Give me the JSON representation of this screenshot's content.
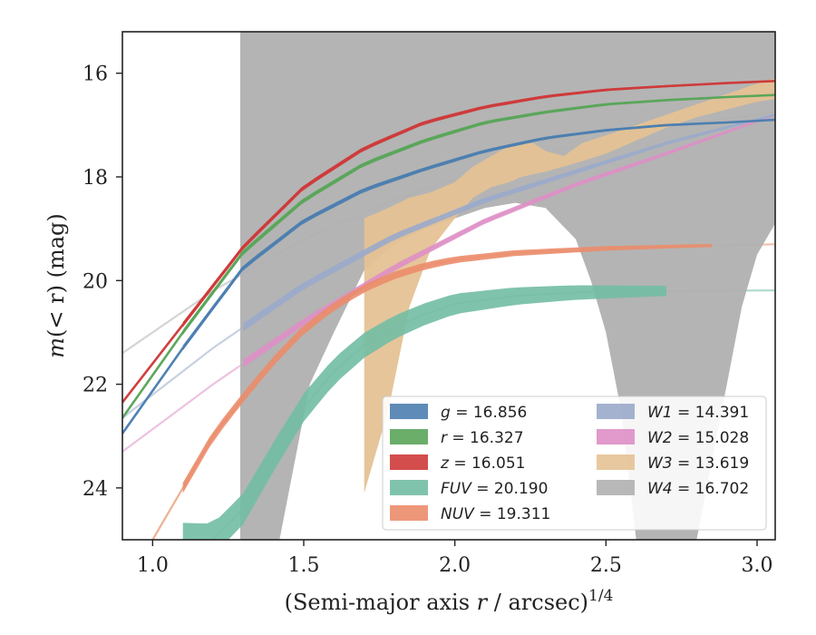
{
  "chart_data": {
    "type": "line",
    "xlabel": {
      "prefix": "(Semi-major axis ",
      "var": "r",
      "suffix": " / arcsec)",
      "exponent": "1/4"
    },
    "ylabel": {
      "var": "m",
      "inner": "(< r)",
      "unit": " (mag)"
    },
    "xlim": [
      0.9,
      3.06
    ],
    "ylim": [
      25.0,
      15.2
    ],
    "y_inverted": true,
    "x_ticks": [
      1.0,
      1.5,
      2.0,
      2.5,
      3.0
    ],
    "x_tick_labels": [
      "1.0",
      "1.5",
      "2.0",
      "2.5",
      "3.0"
    ],
    "y_ticks": [
      16,
      18,
      20,
      22,
      24
    ],
    "y_tick_labels": [
      "16",
      "18",
      "20",
      "22",
      "24"
    ],
    "grid": false,
    "legend_placement": "lower-right",
    "legend_columns": 2,
    "series": [
      {
        "name": "g",
        "value": "16.856",
        "color": "#4c7eb0",
        "model": [
          [
            0.9,
            22.95
          ],
          [
            1.1,
            21.3
          ],
          [
            1.3,
            19.75
          ],
          [
            1.5,
            18.85
          ],
          [
            1.7,
            18.25
          ],
          [
            1.9,
            17.85
          ],
          [
            2.1,
            17.5
          ],
          [
            2.3,
            17.25
          ],
          [
            2.5,
            17.1
          ],
          [
            2.7,
            17.0
          ],
          [
            2.9,
            16.95
          ],
          [
            3.06,
            16.9
          ]
        ],
        "data_range": [
          1.1,
          3.06
        ],
        "data_width": 0.1
      },
      {
        "name": "r",
        "value": "16.327",
        "color": "#5aa55a",
        "model": [
          [
            0.9,
            22.65
          ],
          [
            1.1,
            21.0
          ],
          [
            1.3,
            19.45
          ],
          [
            1.5,
            18.45
          ],
          [
            1.7,
            17.75
          ],
          [
            1.9,
            17.3
          ],
          [
            2.1,
            16.95
          ],
          [
            2.3,
            16.75
          ],
          [
            2.5,
            16.6
          ],
          [
            2.7,
            16.52
          ],
          [
            2.9,
            16.46
          ],
          [
            3.06,
            16.42
          ]
        ],
        "data_range": [
          1.1,
          3.06
        ],
        "data_width": 0.1
      },
      {
        "name": "z",
        "value": "16.051",
        "color": "#cf3a3a",
        "model": [
          [
            0.9,
            22.35
          ],
          [
            1.1,
            20.85
          ],
          [
            1.3,
            19.35
          ],
          [
            1.5,
            18.2
          ],
          [
            1.7,
            17.45
          ],
          [
            1.9,
            16.95
          ],
          [
            2.1,
            16.65
          ],
          [
            2.3,
            16.45
          ],
          [
            2.5,
            16.32
          ],
          [
            2.7,
            16.25
          ],
          [
            2.9,
            16.19
          ],
          [
            3.06,
            16.15
          ]
        ],
        "data_range": [
          1.1,
          3.06
        ],
        "data_width": 0.1
      },
      {
        "name": "FUV",
        "value": "20.190",
        "color": "#72bda4",
        "model": [
          [
            1.2,
            25.0
          ],
          [
            1.3,
            24.4
          ],
          [
            1.4,
            23.4
          ],
          [
            1.5,
            22.45
          ],
          [
            1.6,
            21.75
          ],
          [
            1.7,
            21.25
          ],
          [
            1.8,
            20.9
          ],
          [
            1.9,
            20.65
          ],
          [
            2.0,
            20.45
          ],
          [
            2.2,
            20.3
          ],
          [
            2.4,
            20.23
          ],
          [
            2.7,
            20.2
          ],
          [
            3.06,
            20.19
          ]
        ],
        "data_range": [
          1.1,
          2.7
        ],
        "data_width": 0.65
      },
      {
        "name": "NUV",
        "value": "19.311",
        "color": "#eb8c6a",
        "model": [
          [
            1.0,
            25.0
          ],
          [
            1.1,
            24.0
          ],
          [
            1.2,
            23.0
          ],
          [
            1.3,
            22.25
          ],
          [
            1.4,
            21.55
          ],
          [
            1.5,
            20.95
          ],
          [
            1.6,
            20.5
          ],
          [
            1.7,
            20.15
          ],
          [
            1.8,
            19.9
          ],
          [
            1.9,
            19.72
          ],
          [
            2.0,
            19.6
          ],
          [
            2.2,
            19.47
          ],
          [
            2.5,
            19.38
          ],
          [
            2.8,
            19.33
          ],
          [
            3.06,
            19.3
          ]
        ],
        "data_range": [
          1.1,
          2.85
        ],
        "data_width": 0.2
      },
      {
        "name": "W1",
        "value": "14.391",
        "color": "#9aaacb",
        "model": [
          [
            0.9,
            22.65
          ],
          [
            1.2,
            21.3
          ],
          [
            1.5,
            20.1
          ],
          [
            1.8,
            19.15
          ],
          [
            2.1,
            18.45
          ],
          [
            2.4,
            17.9
          ],
          [
            2.7,
            17.35
          ],
          [
            3.06,
            16.8
          ]
        ],
        "data_range": [
          1.3,
          3.06
        ],
        "data_width": 0.15
      },
      {
        "name": "W2",
        "value": "15.028",
        "color": "#de8fc5",
        "model": [
          [
            0.9,
            23.3
          ],
          [
            1.2,
            22.0
          ],
          [
            1.5,
            20.8
          ],
          [
            1.8,
            19.75
          ],
          [
            2.1,
            18.85
          ],
          [
            2.4,
            18.15
          ],
          [
            2.7,
            17.55
          ],
          [
            3.06,
            16.8
          ]
        ],
        "data_range": [
          1.3,
          3.06
        ],
        "data_width": 0.15
      },
      {
        "name": "W3",
        "value": "13.619",
        "color": "#e5c295",
        "model": [
          [
            1.0,
            25.0
          ],
          [
            1.2,
            23.0
          ],
          [
            1.5,
            20.8
          ],
          [
            1.8,
            19.2
          ],
          [
            2.1,
            18.2
          ],
          [
            2.4,
            17.3
          ],
          [
            2.7,
            16.5
          ],
          [
            3.06,
            15.65
          ]
        ],
        "band_x": [
          1.7,
          1.78,
          1.85,
          1.92,
          2.0,
          2.06,
          2.12,
          2.18,
          2.22,
          2.26,
          2.3,
          2.36,
          2.42,
          2.5,
          2.6,
          2.7,
          2.8,
          2.9,
          3.0,
          3.06
        ],
        "band_upper": [
          18.8,
          18.6,
          18.4,
          18.3,
          18.1,
          17.8,
          17.6,
          17.4,
          17.35,
          17.35,
          17.5,
          17.6,
          17.35,
          17.2,
          17.0,
          16.8,
          16.6,
          16.4,
          16.2,
          16.1
        ],
        "band_lower": [
          24.1,
          22.5,
          20.5,
          19.4,
          18.8,
          18.4,
          18.2,
          18.1,
          18.0,
          17.95,
          17.9,
          17.8,
          17.7,
          17.55,
          17.3,
          17.05,
          16.85,
          16.7,
          16.55,
          16.5
        ]
      },
      {
        "name": "W4",
        "value": "16.702",
        "color": "#b0b0b0",
        "model": [
          [
            0.9,
            21.4
          ],
          [
            1.2,
            20.2
          ],
          [
            1.5,
            19.2
          ],
          [
            1.8,
            18.45
          ],
          [
            2.1,
            17.85
          ],
          [
            2.4,
            17.4
          ],
          [
            2.7,
            17.05
          ],
          [
            3.06,
            16.75
          ]
        ],
        "band_x": [
          1.29,
          1.35,
          1.42,
          1.47,
          1.52,
          1.6,
          1.7,
          1.8,
          1.9,
          2.0,
          2.1,
          2.2,
          2.3,
          2.4,
          2.45,
          2.5,
          2.55,
          2.6,
          2.7,
          2.8,
          2.85,
          2.9,
          2.95,
          3.0,
          3.06
        ],
        "band_upper": [
          15.2,
          15.2,
          15.2,
          15.2,
          15.2,
          15.2,
          15.2,
          15.2,
          15.2,
          15.2,
          15.2,
          15.2,
          15.2,
          15.2,
          15.2,
          15.2,
          15.2,
          15.2,
          15.2,
          15.2,
          15.2,
          15.2,
          15.2,
          15.2,
          15.2
        ],
        "band_lower": [
          25.0,
          25.0,
          25.0,
          23.5,
          22.0,
          21.0,
          19.8,
          19.3,
          19.0,
          18.8,
          18.6,
          18.5,
          18.6,
          19.2,
          20.0,
          21.0,
          22.5,
          25.0,
          25.0,
          25.0,
          23.5,
          22.0,
          20.5,
          19.5,
          18.9
        ]
      }
    ]
  }
}
